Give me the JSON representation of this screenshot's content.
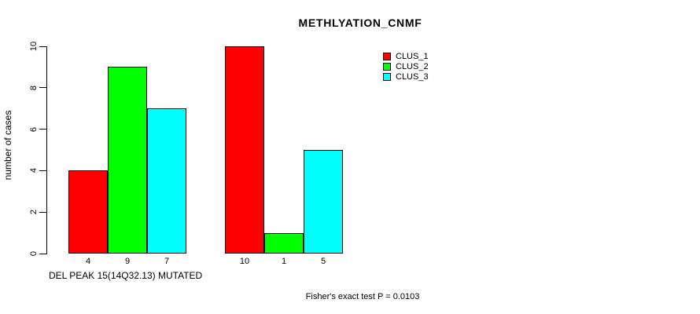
{
  "chart_data": {
    "type": "bar",
    "title": "METHLYATION_CNMF",
    "ylabel": "number of cases",
    "xlabel": "DEL PEAK 15(14Q32.13) MUTATED",
    "annotation": "Fisher's exact test P = 0.0103",
    "series": [
      {
        "name": "CLUS_1",
        "color": "#ff0000",
        "values": [
          4,
          10
        ]
      },
      {
        "name": "CLUS_2",
        "color": "#00ff00",
        "values": [
          9,
          1
        ]
      },
      {
        "name": "CLUS_3",
        "color": "#00ffff",
        "values": [
          7,
          5
        ]
      }
    ],
    "group_count": 2,
    "yticks": [
      0,
      2,
      4,
      6,
      8,
      10
    ],
    "ylim": [
      0,
      10
    ],
    "bar_value_labels_shown": true,
    "grid": false,
    "legend_position": "top-right",
    "background_color": "#ffffff",
    "axis_color": "#000000",
    "text_color": "#000000"
  }
}
